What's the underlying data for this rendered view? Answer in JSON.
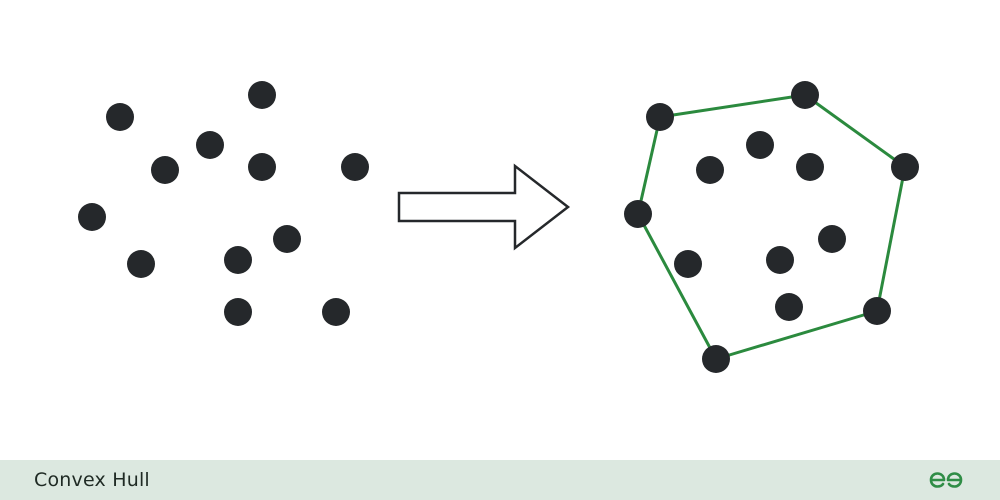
{
  "colors": {
    "point": "#25282b",
    "hull": "#2b8a3e",
    "arrow_stroke": "#25282b",
    "arrow_fill": "#ffffff",
    "footer_bg": "#dce8e0",
    "logo": "#2f8d46"
  },
  "footer": {
    "title": "Convex Hull",
    "logo_icon": "geeksforgeeks-logo-icon",
    "logo_text": "GG"
  },
  "icons": {
    "arrow": "right-arrow-outline-icon"
  }
}
